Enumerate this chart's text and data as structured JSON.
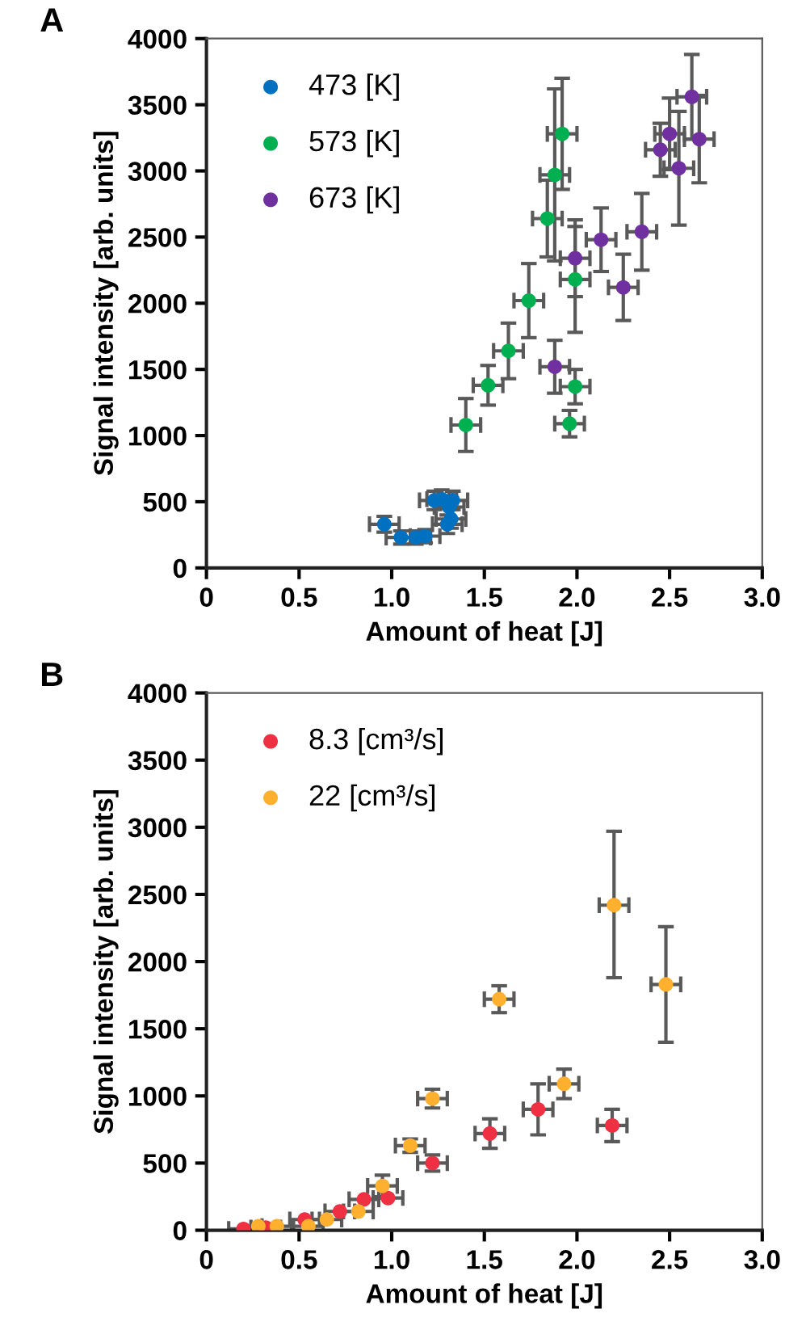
{
  "chart_data": [
    {
      "type": "scatter",
      "title": "A",
      "xlabel": "Amount of heat [J]",
      "ylabel": "Signal intensity [arb. units]",
      "xlim": [
        0,
        3
      ],
      "ylim": [
        0,
        4000
      ],
      "xticks": [
        0,
        0.5,
        {
          "value": 1,
          "label": "1.0"
        },
        1.5,
        {
          "value": 2,
          "label": "2.0"
        },
        2.5,
        {
          "value": 3,
          "label": "3.0"
        }
      ],
      "yticks": [
        0,
        500,
        1000,
        1500,
        2000,
        2500,
        3000,
        3500,
        4000
      ],
      "grid": false,
      "legend": "top left",
      "marker": "circle",
      "series": [
        {
          "name": "473 [K]",
          "color": "#0070c0",
          "x": [
            0.96,
            1.05,
            1.13,
            1.18,
            1.23,
            1.27,
            1.33,
            1.31,
            1.32,
            1.3
          ],
          "values": [
            330,
            230,
            230,
            240,
            510,
            520,
            510,
            460,
            370,
            330
          ],
          "xerrors": [
            0.08,
            0.08,
            0.08,
            0.08,
            0.08,
            0.08,
            0.08,
            0.08,
            0.08,
            0.08
          ],
          "errors": [
            60,
            50,
            50,
            50,
            70,
            70,
            70,
            null,
            70,
            70
          ]
        },
        {
          "name": "573 [K]",
          "color": "#00b050",
          "x": [
            1.4,
            1.52,
            1.63,
            1.74,
            1.84,
            1.88,
            1.92,
            1.99,
            1.99,
            1.96
          ],
          "values": [
            1080,
            1380,
            1640,
            2020,
            2640,
            2970,
            3280,
            2180,
            1370,
            1090
          ],
          "xerrors": [
            0.08,
            0.08,
            0.08,
            0.08,
            0.08,
            0.08,
            0.08,
            0.08,
            0.08,
            0.08
          ],
          "errors": [
            200,
            150,
            210,
            280,
            290,
            650,
            420,
            400,
            130,
            100
          ]
        },
        {
          "name": "673 [K]",
          "color": "#7030a0",
          "x": [
            1.88,
            1.99,
            2.13,
            2.25,
            2.35,
            2.45,
            2.5,
            2.55,
            2.62,
            2.66
          ],
          "values": [
            1520,
            2340,
            2480,
            2120,
            2540,
            3160,
            3280,
            3020,
            3560,
            3240
          ],
          "xerrors": [
            0.08,
            0.08,
            0.08,
            0.08,
            0.08,
            0.08,
            0.08,
            0.08,
            0.08,
            0.08
          ],
          "errors": [
            200,
            290,
            240,
            250,
            290,
            200,
            270,
            430,
            320,
            330
          ]
        }
      ]
    },
    {
      "type": "scatter",
      "title": "B",
      "xlabel": "Amount of heat [J]",
      "ylabel": "Signal intensity [arb. units]",
      "xlim": [
        0,
        3
      ],
      "ylim": [
        0,
        4000
      ],
      "xticks": [
        0,
        0.5,
        {
          "value": 1,
          "label": "1.0"
        },
        1.5,
        {
          "value": 2,
          "label": "2.0"
        },
        2.5,
        {
          "value": 3,
          "label": "3.0"
        }
      ],
      "yticks": [
        0,
        500,
        1000,
        1500,
        2000,
        2500,
        3000,
        3500,
        4000
      ],
      "grid": false,
      "legend": "top left",
      "marker": "circle",
      "series": [
        {
          "name": "8.3 [cm³/s]",
          "color": "#ee3042",
          "x": [
            0.2,
            0.32,
            0.53,
            0.72,
            0.85,
            0.98,
            1.22,
            1.53,
            1.79,
            2.19
          ],
          "values": [
            10,
            20,
            80,
            140,
            230,
            240,
            500,
            720,
            900,
            780
          ],
          "xerrors": [
            0.08,
            0.08,
            0.08,
            0.08,
            0.08,
            0.08,
            0.08,
            0.08,
            0.08,
            0.08
          ],
          "errors": [
            null,
            null,
            null,
            null,
            null,
            null,
            60,
            110,
            190,
            120
          ]
        },
        {
          "name": "22 [cm³/s]",
          "color": "#ffb02e",
          "x": [
            0.28,
            0.38,
            0.55,
            0.65,
            0.82,
            0.95,
            1.1,
            1.22,
            1.58,
            1.93,
            2.2,
            2.48
          ],
          "values": [
            30,
            30,
            30,
            80,
            140,
            330,
            630,
            980,
            1720,
            1090,
            2420,
            1830
          ],
          "xerrors": [
            null,
            0.08,
            0.08,
            0.08,
            0.08,
            0.08,
            0.08,
            0.08,
            0.08,
            0.08,
            0.08,
            0.08
          ],
          "errors": [
            null,
            null,
            null,
            null,
            null,
            80,
            50,
            70,
            100,
            110,
            [
              1880,
              2970
            ],
            [
              1400,
              2260
            ]
          ]
        }
      ]
    }
  ]
}
